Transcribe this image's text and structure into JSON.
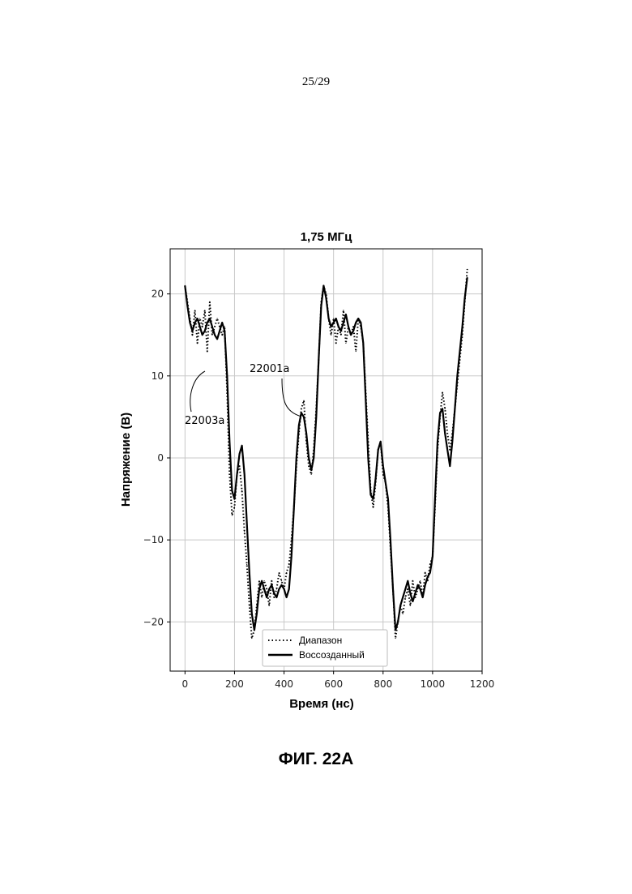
{
  "page": {
    "number": "25/29",
    "caption": "ФИГ. 22A"
  },
  "chart_data": {
    "type": "line",
    "title": "1,75 МГц",
    "xlabel": "Время (нс)",
    "ylabel": "Напряжение (В)",
    "xlim": [
      -60,
      1200
    ],
    "ylim": [
      -26,
      25.5
    ],
    "xticks": [
      0,
      200,
      400,
      600,
      800,
      1000,
      1200
    ],
    "yticks": [
      -20,
      -10,
      0,
      10,
      20
    ],
    "grid": true,
    "legend_position": "bottom-center",
    "series": [
      {
        "name": "Диапазон",
        "style": "dotted",
        "x": [
          0,
          10,
          20,
          30,
          40,
          50,
          60,
          70,
          80,
          90,
          100,
          110,
          120,
          130,
          140,
          150,
          160,
          170,
          180,
          190,
          200,
          210,
          220,
          230,
          240,
          250,
          260,
          270,
          280,
          290,
          300,
          310,
          320,
          330,
          340,
          350,
          360,
          370,
          380,
          390,
          400,
          410,
          420,
          430,
          440,
          450,
          460,
          470,
          480,
          490,
          500,
          510,
          520,
          530,
          540,
          550,
          560,
          570,
          580,
          590,
          600,
          610,
          620,
          630,
          640,
          650,
          660,
          670,
          680,
          690,
          700,
          710,
          720,
          730,
          740,
          750,
          760,
          770,
          780,
          790,
          800,
          810,
          820,
          830,
          840,
          850,
          860,
          870,
          880,
          890,
          900,
          910,
          920,
          930,
          940,
          950,
          960,
          970,
          980,
          990,
          1000,
          1010,
          1020,
          1030,
          1040,
          1050,
          1060,
          1070,
          1080,
          1090,
          1100,
          1110,
          1120,
          1130,
          1140
        ],
        "y": [
          21,
          19,
          17,
          15,
          18,
          14,
          17,
          16,
          18,
          13,
          19,
          15,
          16,
          17,
          16,
          15,
          16,
          8,
          -2,
          -7,
          -6,
          -2,
          -1,
          -4,
          -9,
          -13,
          -18,
          -22,
          -21,
          -18,
          -15,
          -17,
          -15,
          -16,
          -18,
          -15,
          -17,
          -16,
          -14,
          -15,
          -16,
          -14,
          -13,
          -10,
          -6,
          -1,
          3,
          6,
          7,
          2,
          -1,
          -2,
          1,
          6,
          12,
          19,
          21,
          20,
          17,
          15,
          17,
          14,
          16,
          15,
          18,
          14,
          16,
          15,
          16,
          13,
          17,
          16,
          14,
          8,
          2,
          -4,
          -6,
          -3,
          1,
          2,
          -2,
          -3,
          -6,
          -11,
          -16,
          -22,
          -20,
          -18,
          -19,
          -17,
          -16,
          -18,
          -15,
          -17,
          -16,
          -15,
          -17,
          -14,
          -15,
          -13,
          -12,
          -6,
          1,
          5,
          8,
          6,
          3,
          1,
          3,
          6,
          9,
          12,
          15,
          19,
          23
        ]
      },
      {
        "name": "Воссозданный",
        "style": "solid",
        "x": [
          0,
          10,
          20,
          30,
          40,
          50,
          60,
          70,
          80,
          90,
          100,
          110,
          120,
          130,
          140,
          150,
          160,
          170,
          180,
          190,
          200,
          210,
          220,
          230,
          240,
          250,
          260,
          270,
          280,
          290,
          300,
          310,
          320,
          330,
          340,
          350,
          360,
          370,
          380,
          390,
          400,
          410,
          420,
          430,
          440,
          450,
          460,
          470,
          480,
          490,
          500,
          510,
          520,
          530,
          540,
          550,
          560,
          570,
          580,
          590,
          600,
          610,
          620,
          630,
          640,
          650,
          660,
          670,
          680,
          690,
          700,
          710,
          720,
          730,
          740,
          750,
          760,
          770,
          780,
          790,
          800,
          810,
          820,
          830,
          840,
          850,
          860,
          870,
          880,
          890,
          900,
          910,
          920,
          930,
          940,
          950,
          960,
          970,
          980,
          990,
          1000,
          1010,
          1020,
          1030,
          1040,
          1050,
          1060,
          1070,
          1080,
          1090,
          1100,
          1110,
          1120,
          1130,
          1140
        ],
        "y": [
          21,
          18.5,
          16.5,
          15.5,
          16.5,
          17,
          16,
          15,
          15.5,
          16.5,
          17,
          16,
          15,
          14.5,
          15.5,
          16.5,
          15.5,
          10,
          2,
          -4,
          -5,
          -2,
          0.5,
          1.5,
          -2,
          -8,
          -14,
          -19,
          -21,
          -19,
          -16,
          -15,
          -16,
          -17,
          -16,
          -15.5,
          -16.5,
          -17,
          -16,
          -15.5,
          -16,
          -17,
          -16,
          -12,
          -6,
          0,
          4,
          5.5,
          5,
          3,
          0,
          -1.5,
          0,
          5,
          12,
          18.5,
          21,
          19.5,
          17,
          16,
          16.5,
          17,
          16,
          15.5,
          16.5,
          17.5,
          16,
          15,
          15.5,
          16.5,
          17,
          16.5,
          14,
          7,
          0,
          -4.5,
          -5,
          -2.5,
          1,
          2,
          -1,
          -3,
          -5,
          -10,
          -16,
          -21,
          -20,
          -18,
          -17,
          -16,
          -15,
          -16.5,
          -17.5,
          -16.5,
          -15.5,
          -16,
          -17,
          -15.5,
          -14.5,
          -14,
          -12,
          -5,
          2,
          5.5,
          6,
          3,
          1,
          -1,
          2,
          6,
          10,
          13,
          16,
          19.5,
          22
        ]
      }
    ],
    "annotations": [
      "22001a",
      "22003a"
    ]
  }
}
